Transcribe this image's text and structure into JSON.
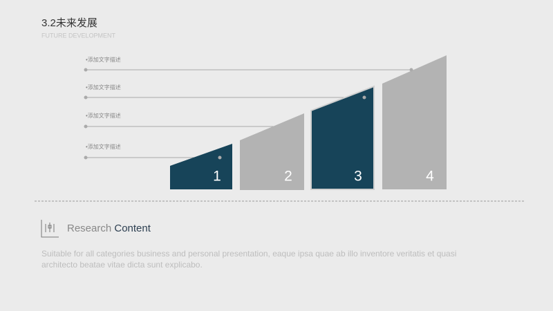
{
  "header": {
    "title": "3.2未来发展",
    "subtitle": "FUTURE DEVELOPMENT"
  },
  "steps": [
    {
      "number": "1",
      "note": "•添加文字描述"
    },
    {
      "number": "2",
      "note": "•添加文字描述"
    },
    {
      "number": "3",
      "note": "•添加文字描述"
    },
    {
      "number": "4",
      "note": "•添加文字描述"
    }
  ],
  "section": {
    "title_light": "Research",
    "title_bold": "Content",
    "body": [
      "Suitable for all categories business and personal presentation, eaque ipsa quae ab illo inventore veritatis et quasi",
      "architecto beatae vitae dicta sunt explicabo."
    ]
  }
}
